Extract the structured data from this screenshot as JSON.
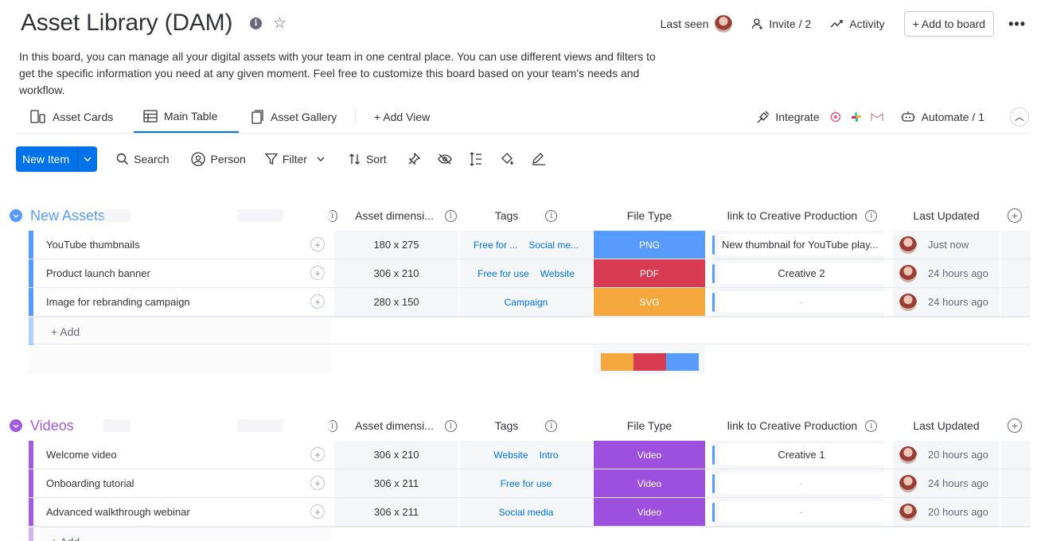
{
  "header": {
    "title": "Asset Library (DAM)",
    "last_seen_label": "Last seen",
    "invite_label": "Invite / 2",
    "activity_label": "Activity",
    "add_to_board_label": "+ Add to board",
    "more_label": "•••"
  },
  "description": "In this board, you can manage all your digital assets with your team in one central place. You can use different views and filters to get the specific information you need at any given moment. Feel free to customize this board based on your team's needs and workflow.",
  "views": {
    "tabs": [
      {
        "label": "Asset Cards",
        "icon": "cards-icon"
      },
      {
        "label": "Main Table",
        "icon": "table-icon",
        "active": true
      },
      {
        "label": "Asset Gallery",
        "icon": "gallery-icon"
      }
    ],
    "add_view_label": "+ Add View",
    "integrate_label": "Integrate",
    "automate_label": "Automate / 1"
  },
  "toolbar": {
    "new_item_label": "New Item",
    "search_label": "Search",
    "person_label": "Person",
    "filter_label": "Filter",
    "sort_label": "Sort"
  },
  "columns": {
    "dimensions": "Asset dimensi...",
    "tags": "Tags",
    "file_type": "File Type",
    "link": "link to Creative Production",
    "last_updated": "Last Updated"
  },
  "colors": {
    "png": "#579bfc",
    "pdf": "#d83a52",
    "svg": "#f3a73c",
    "video": "#9d50dd",
    "group_blue": "#579bfc",
    "group_purple": "#a25ddc"
  },
  "groups": [
    {
      "title": "New Assets",
      "add_label": "+ Add",
      "rows": [
        {
          "name": "YouTube thumbnails",
          "dimensions": "180 x 275",
          "tags": [
            "Free for ...",
            "Social me..."
          ],
          "file_type": "PNG",
          "link": "New thumbnail for YouTube play...",
          "updated": "Just now"
        },
        {
          "name": "Product launch banner",
          "dimensions": "306 x 210",
          "tags": [
            "Free for use",
            "Website"
          ],
          "file_type": "PDF",
          "link": "Creative 2",
          "updated": "24 hours ago"
        },
        {
          "name": "Image for rebranding campaign",
          "dimensions": "280 x 150",
          "tags": [
            "Campaign"
          ],
          "file_type": "SVG",
          "link": "-",
          "updated": "24 hours ago"
        }
      ]
    },
    {
      "title": "Videos",
      "add_label": "+ Add",
      "rows": [
        {
          "name": "Welcome video",
          "dimensions": "306 x 210",
          "tags": [
            "Website",
            "Intro"
          ],
          "file_type": "Video",
          "link": "Creative 1",
          "updated": "20 hours ago"
        },
        {
          "name": "Onboarding tutorial",
          "dimensions": "306 x 211",
          "tags": [
            "Free for use"
          ],
          "file_type": "Video",
          "link": "-",
          "updated": "24 hours ago"
        },
        {
          "name": "Advanced walkthrough webinar",
          "dimensions": "306 x 211",
          "tags": [
            "Social media"
          ],
          "file_type": "Video",
          "link": "-",
          "updated": "20 hours ago"
        }
      ]
    }
  ]
}
